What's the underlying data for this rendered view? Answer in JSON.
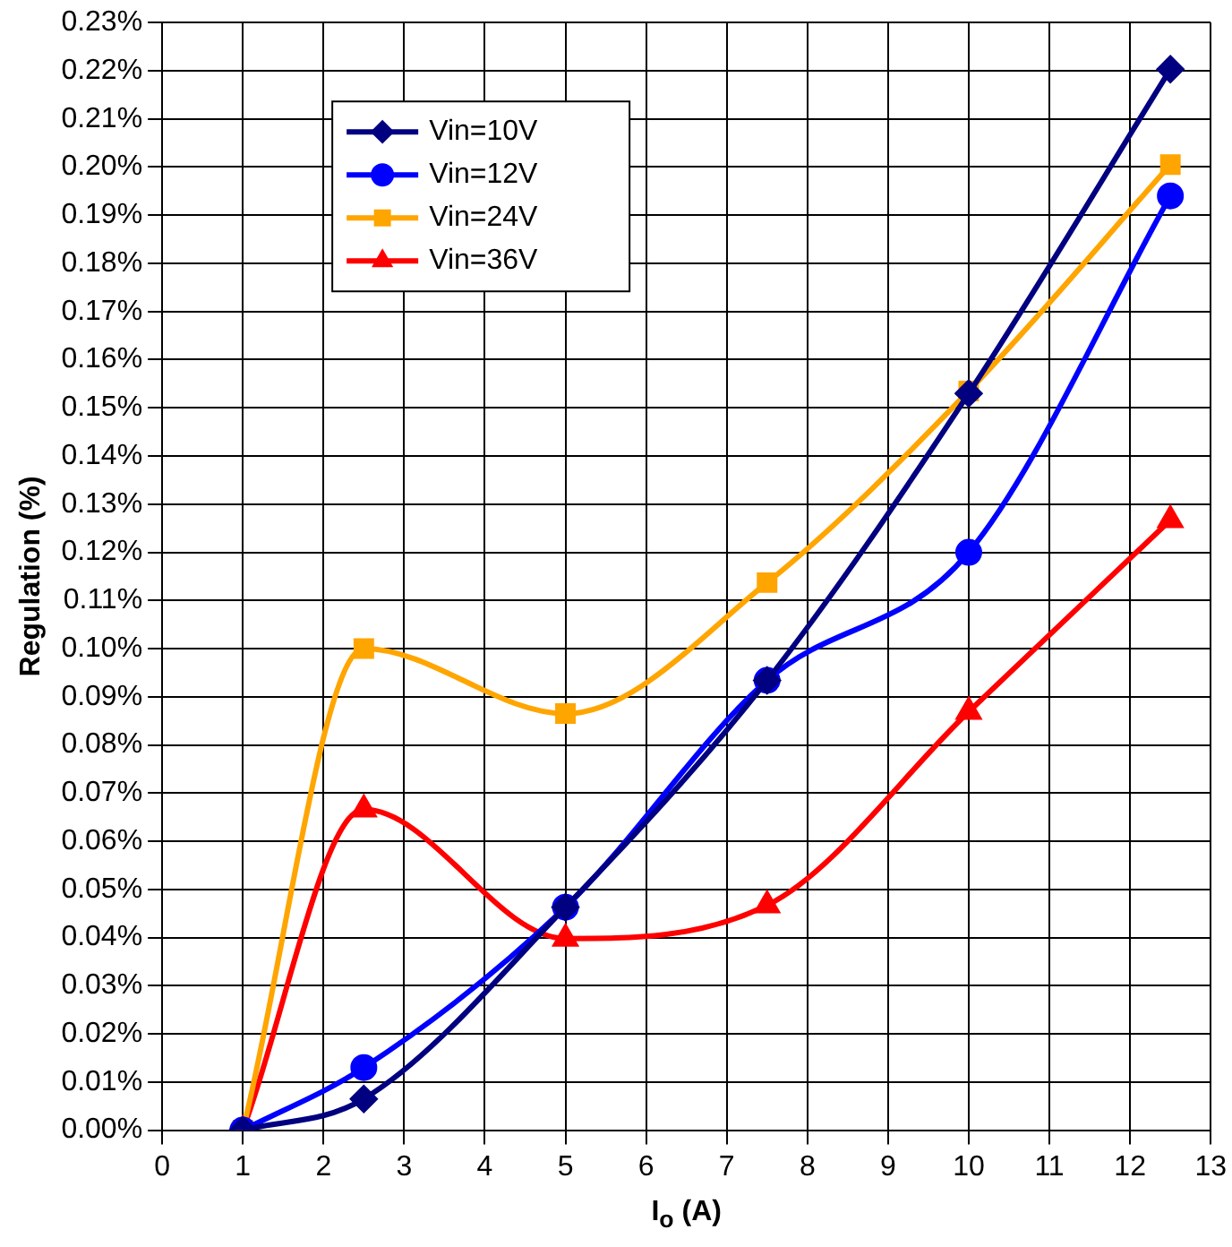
{
  "chart_data": {
    "type": "line",
    "xlabel": "I$_{o}$ (A)",
    "ylabel": "Regulation (%)",
    "xlim": [
      0,
      13
    ],
    "xticks": [
      0,
      1,
      2,
      3,
      4,
      5,
      6,
      7,
      8,
      9,
      10,
      11,
      12,
      13
    ],
    "ylim": [
      0,
      0.23
    ],
    "yticks": [
      {
        "value": 0,
        "label": "0.00%"
      },
      {
        "value": 0.01,
        "label": "0.01%"
      },
      {
        "value": 0.02,
        "label": "0.02%"
      },
      {
        "value": 0.03,
        "label": "0.03%"
      },
      {
        "value": 0.04,
        "label": "0.04%"
      },
      {
        "value": 0.05,
        "label": "0.05%"
      },
      {
        "value": 0.06,
        "label": "0.06%"
      },
      {
        "value": 0.07,
        "label": "0.07%"
      },
      {
        "value": 0.08,
        "label": "0.08%"
      },
      {
        "value": 0.09,
        "label": "0.09%"
      },
      {
        "value": 0.1,
        "label": "0.10%"
      },
      {
        "value": 0.11,
        "label": "0.11%"
      },
      {
        "value": 0.12,
        "label": "0.12%"
      },
      {
        "value": 0.13,
        "label": "0.13%"
      },
      {
        "value": 0.14,
        "label": "0.14%"
      },
      {
        "value": 0.15,
        "label": "0.15%"
      },
      {
        "value": 0.16,
        "label": "0.16%"
      },
      {
        "value": 0.17,
        "label": "0.17%"
      },
      {
        "value": 0.18,
        "label": "0.18%"
      },
      {
        "value": 0.19,
        "label": "0.19%"
      },
      {
        "value": 0.2,
        "label": "0.20%"
      },
      {
        "value": 0.21,
        "label": "0.21%"
      },
      {
        "value": 0.22,
        "label": "0.22%"
      },
      {
        "value": 0.23,
        "label": "0.23%"
      }
    ],
    "x": [
      1,
      2.5,
      5,
      7.5,
      10,
      12.5
    ],
    "grid": true,
    "legend": "top left",
    "series": [
      {
        "name": "Vin=10V",
        "color": "#000080",
        "marker": "diamond",
        "values": [
          0,
          0.0065,
          0.0463,
          0.0934,
          0.153,
          0.2203
        ]
      },
      {
        "name": "Vin=12V",
        "color": "#0000ff",
        "marker": "circle",
        "values": [
          0,
          0.013,
          0.0463,
          0.0934,
          0.12,
          0.194
        ]
      },
      {
        "name": "Vin=24V",
        "color": "#ffa500",
        "marker": "square",
        "values": [
          0,
          0.1,
          0.0865,
          0.1137,
          0.1535,
          0.2005
        ]
      },
      {
        "name": "Vin=36V",
        "color": "#ff0000",
        "marker": "triangle",
        "values": [
          0,
          0.0666,
          0.0398,
          0.0467,
          0.0869,
          0.1267
        ]
      }
    ]
  }
}
